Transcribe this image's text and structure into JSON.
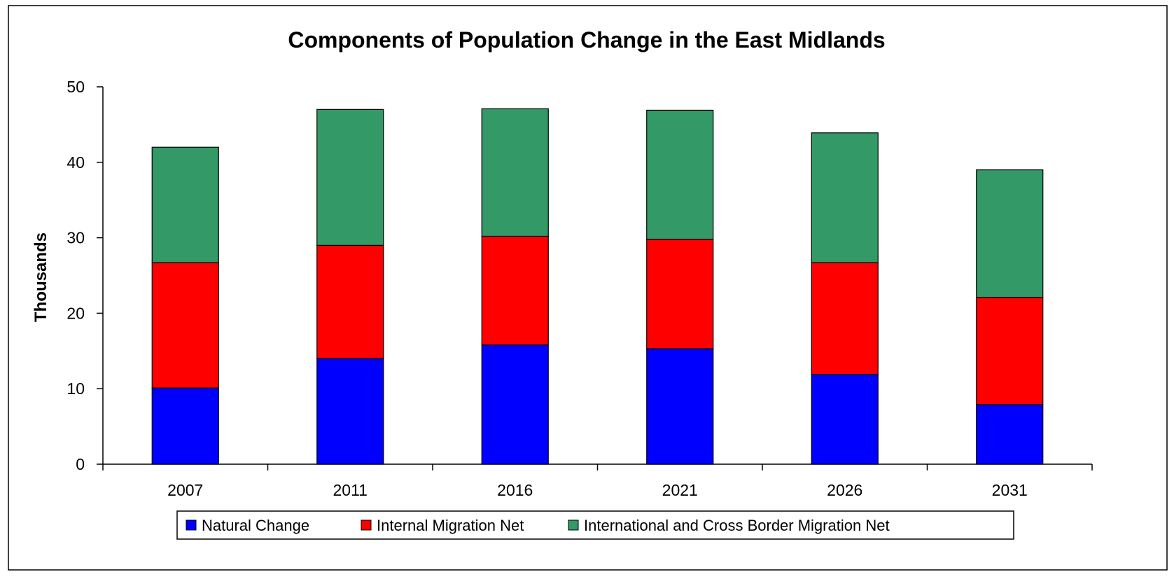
{
  "chart_data": {
    "type": "bar",
    "stacked": true,
    "title": "Components of Population Change in the East Midlands",
    "xlabel": "",
    "ylabel": "Thousands",
    "categories": [
      "2007",
      "2011",
      "2016",
      "2021",
      "2026",
      "2031"
    ],
    "ylim": [
      0,
      50
    ],
    "yticks": [
      0,
      10,
      20,
      30,
      40,
      50
    ],
    "grid": false,
    "legend_position": "bottom",
    "series": [
      {
        "name": "Natural Change",
        "color": "#0000FF",
        "values": [
          10.1,
          14.0,
          15.8,
          15.3,
          11.9,
          7.9
        ]
      },
      {
        "name": "Internal Migration Net",
        "color": "#FF0000",
        "values": [
          16.6,
          15.0,
          14.4,
          14.5,
          14.8,
          14.2
        ]
      },
      {
        "name": "International and Cross Border Migration Net",
        "color": "#339966",
        "values": [
          15.3,
          18.0,
          16.9,
          17.1,
          17.2,
          16.9
        ]
      }
    ]
  }
}
